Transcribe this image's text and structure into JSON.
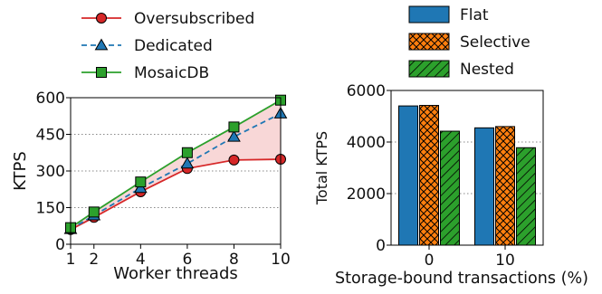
{
  "chart_data": [
    {
      "type": "line",
      "xlabel": "Worker threads",
      "ylabel": "KTPS",
      "xlim": [
        1,
        10
      ],
      "ylim": [
        0,
        600
      ],
      "x": [
        1,
        2,
        4,
        6,
        8,
        10
      ],
      "xticks": [
        "1",
        "2",
        "4",
        "6",
        "8",
        "10"
      ],
      "yticks": [
        "0",
        "150",
        "300",
        "450",
        "600"
      ],
      "grid": "horizontal dotted",
      "legend_position": "top",
      "shaded_region": "between MosaicDB and Oversubscribed",
      "series": [
        {
          "name": "Oversubscribed",
          "marker": "circle",
          "style": "solid",
          "color": "#d62728",
          "values": [
            60,
            110,
            215,
            310,
            345,
            348
          ]
        },
        {
          "name": "Dedicated",
          "marker": "triangle",
          "style": "dashed",
          "color": "#1f77b4",
          "values": [
            62,
            118,
            230,
            330,
            440,
            535
          ]
        },
        {
          "name": "MosaicDB",
          "marker": "square",
          "style": "solid",
          "color": "#2ca02c",
          "values": [
            68,
            132,
            255,
            375,
            480,
            590
          ]
        }
      ]
    },
    {
      "type": "bar",
      "xlabel": "Storage-bound transactions (%)",
      "ylabel": "Total KTPS",
      "categories": [
        "0",
        "10"
      ],
      "ylim": [
        0,
        6000
      ],
      "yticks": [
        "0",
        "2000",
        "4000",
        "6000"
      ],
      "grid": "horizontal dotted",
      "legend_position": "top",
      "series": [
        {
          "name": "Flat",
          "color": "#1f77b4",
          "hatch": "none",
          "values": [
            5400,
            4550
          ]
        },
        {
          "name": "Selective",
          "color": "#ff7f0e",
          "hatch": "crosshatch",
          "values": [
            5420,
            4600
          ]
        },
        {
          "name": "Nested",
          "color": "#2ca02c",
          "hatch": "diagonal",
          "values": [
            4420,
            3780
          ]
        }
      ]
    }
  ]
}
